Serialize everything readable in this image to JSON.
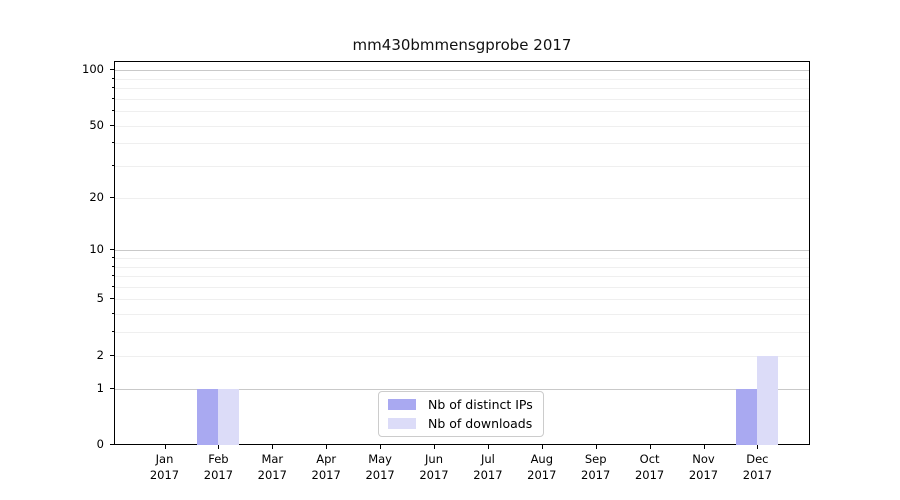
{
  "chart_data": {
    "type": "bar",
    "title": "mm430bmmensgprobe 2017",
    "categories": [
      "Jan 2017",
      "Feb 2017",
      "Mar 2017",
      "Apr 2017",
      "May 2017",
      "Jun 2017",
      "Jul 2017",
      "Aug 2017",
      "Sep 2017",
      "Oct 2017",
      "Nov 2017",
      "Dec 2017"
    ],
    "series": [
      {
        "name": "Nb of distinct IPs",
        "color": "#a9a9f1",
        "values": [
          0,
          1,
          0,
          0,
          0,
          0,
          0,
          0,
          0,
          0,
          0,
          1
        ]
      },
      {
        "name": "Nb of downloads",
        "color": "#dcdcf8",
        "values": [
          0,
          1,
          0,
          0,
          0,
          0,
          0,
          0,
          0,
          0,
          0,
          2
        ]
      }
    ],
    "xlabel": "",
    "ylabel": "",
    "yscale": "log1p",
    "ylim": [
      0,
      112
    ],
    "yticks_labeled": [
      0,
      1,
      2,
      5,
      10,
      20,
      50,
      100
    ],
    "yticks_major_grid": [
      1,
      10,
      100
    ],
    "yticks_minor": [
      3,
      4,
      6,
      7,
      8,
      9,
      30,
      40,
      60,
      70,
      80,
      90
    ],
    "grid": true,
    "legend_position": "lower center"
  },
  "colors": {
    "grid_major": "#c9c9c9",
    "grid_minor": "#efefef",
    "spine": "#000000"
  }
}
